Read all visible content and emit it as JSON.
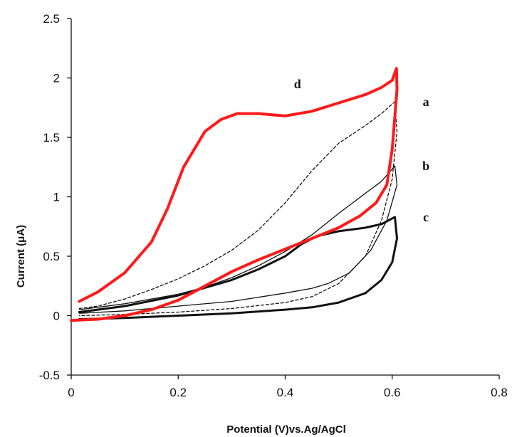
{
  "chart_data": {
    "type": "line",
    "title": "",
    "xlabel": "Potential (V)vs.Ag/AgCl",
    "ylabel": "Current (μA)",
    "xlim": [
      0,
      0.8
    ],
    "ylim": [
      -0.5,
      2.5
    ],
    "xticks": [
      "0",
      "0.2",
      "0.4",
      "0.6",
      "0.8"
    ],
    "yticks": [
      "-0.5",
      "0",
      "0.5",
      "1",
      "1.5",
      "2",
      "2.5"
    ],
    "grid": false,
    "legend": "none",
    "series": [
      {
        "name": "a",
        "color": "#111111",
        "style": "dashed",
        "points": [
          [
            0.015,
            0.06
          ],
          [
            0.05,
            0.08
          ],
          [
            0.1,
            0.14
          ],
          [
            0.15,
            0.22
          ],
          [
            0.2,
            0.31
          ],
          [
            0.25,
            0.42
          ],
          [
            0.3,
            0.55
          ],
          [
            0.35,
            0.72
          ],
          [
            0.4,
            0.95
          ],
          [
            0.45,
            1.22
          ],
          [
            0.5,
            1.45
          ],
          [
            0.55,
            1.6
          ],
          [
            0.58,
            1.7
          ],
          [
            0.605,
            1.8
          ],
          [
            0.609,
            1.55
          ],
          [
            0.6,
            1.15
          ],
          [
            0.58,
            0.8
          ],
          [
            0.55,
            0.5
          ],
          [
            0.5,
            0.27
          ],
          [
            0.45,
            0.16
          ],
          [
            0.4,
            0.11
          ],
          [
            0.3,
            0.06
          ],
          [
            0.2,
            0.03
          ],
          [
            0.1,
            0.01
          ],
          [
            0.015,
            0.0
          ]
        ]
      },
      {
        "name": "b",
        "color": "#111111",
        "style": "solid-thin",
        "points": [
          [
            0.015,
            0.05
          ],
          [
            0.1,
            0.1
          ],
          [
            0.2,
            0.18
          ],
          [
            0.25,
            0.24
          ],
          [
            0.3,
            0.32
          ],
          [
            0.35,
            0.42
          ],
          [
            0.4,
            0.54
          ],
          [
            0.45,
            0.68
          ],
          [
            0.5,
            0.86
          ],
          [
            0.55,
            1.03
          ],
          [
            0.58,
            1.13
          ],
          [
            0.605,
            1.26
          ],
          [
            0.609,
            1.1
          ],
          [
            0.59,
            0.8
          ],
          [
            0.56,
            0.55
          ],
          [
            0.52,
            0.36
          ],
          [
            0.48,
            0.27
          ],
          [
            0.45,
            0.23
          ],
          [
            0.4,
            0.19
          ],
          [
            0.3,
            0.12
          ],
          [
            0.2,
            0.08
          ],
          [
            0.1,
            0.04
          ],
          [
            0.015,
            0.02
          ]
        ]
      },
      {
        "name": "c",
        "color": "#111111",
        "style": "solid-thick",
        "points": [
          [
            0.015,
            0.03
          ],
          [
            0.1,
            0.08
          ],
          [
            0.2,
            0.17
          ],
          [
            0.3,
            0.3
          ],
          [
            0.35,
            0.39
          ],
          [
            0.4,
            0.5
          ],
          [
            0.43,
            0.6
          ],
          [
            0.46,
            0.67
          ],
          [
            0.5,
            0.71
          ],
          [
            0.55,
            0.74
          ],
          [
            0.58,
            0.77
          ],
          [
            0.605,
            0.83
          ],
          [
            0.609,
            0.65
          ],
          [
            0.6,
            0.45
          ],
          [
            0.58,
            0.3
          ],
          [
            0.55,
            0.19
          ],
          [
            0.5,
            0.11
          ],
          [
            0.45,
            0.07
          ],
          [
            0.4,
            0.05
          ],
          [
            0.3,
            0.02
          ],
          [
            0.2,
            0.0
          ],
          [
            0.1,
            -0.02
          ],
          [
            0.015,
            -0.03
          ]
        ]
      },
      {
        "name": "d",
        "color": "#ff1a1a",
        "style": "solid-thick",
        "points": [
          [
            0.015,
            0.12
          ],
          [
            0.05,
            0.2
          ],
          [
            0.1,
            0.36
          ],
          [
            0.15,
            0.62
          ],
          [
            0.18,
            0.9
          ],
          [
            0.21,
            1.25
          ],
          [
            0.25,
            1.55
          ],
          [
            0.28,
            1.65
          ],
          [
            0.31,
            1.7
          ],
          [
            0.35,
            1.7
          ],
          [
            0.4,
            1.68
          ],
          [
            0.45,
            1.72
          ],
          [
            0.5,
            1.79
          ],
          [
            0.55,
            1.86
          ],
          [
            0.58,
            1.92
          ],
          [
            0.6,
            1.98
          ],
          [
            0.608,
            2.08
          ],
          [
            0.609,
            1.9
          ],
          [
            0.6,
            1.4
          ],
          [
            0.59,
            1.1
          ],
          [
            0.57,
            0.95
          ],
          [
            0.54,
            0.84
          ],
          [
            0.5,
            0.74
          ],
          [
            0.45,
            0.65
          ],
          [
            0.4,
            0.56
          ],
          [
            0.35,
            0.47
          ],
          [
            0.3,
            0.37
          ],
          [
            0.25,
            0.25
          ],
          [
            0.2,
            0.13
          ],
          [
            0.15,
            0.05
          ],
          [
            0.1,
            0.0
          ],
          [
            0.05,
            -0.03
          ],
          [
            0.0,
            -0.04
          ]
        ]
      }
    ],
    "labels": [
      {
        "text": "a",
        "x": 0.663,
        "y": 1.8
      },
      {
        "text": "b",
        "x": 0.663,
        "y": 1.26
      },
      {
        "text": "c",
        "x": 0.663,
        "y": 0.83
      },
      {
        "text": "d",
        "x": 0.423,
        "y": 1.95
      }
    ]
  }
}
